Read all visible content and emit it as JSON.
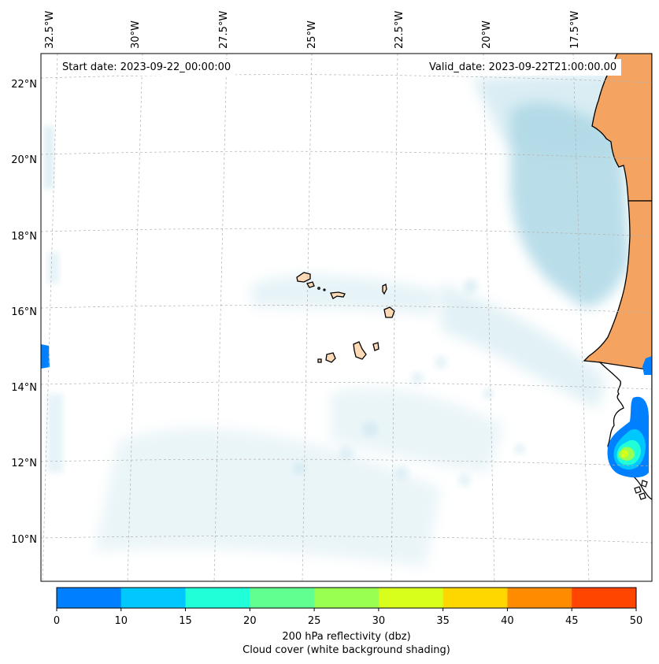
{
  "map": {
    "start_date": "Start date: 2023-09-22_00:00:00",
    "valid_date": "Valid_date: 2023-09-22T21:00:00.00",
    "longitude_labels": [
      "32.5°W",
      "30°W",
      "27.5°W",
      "25°W",
      "22.5°W",
      "20°W",
      "17.5°W"
    ],
    "latitude_labels": [
      "22°N",
      "20°N",
      "18°N",
      "16°N",
      "14°N",
      "12°N",
      "10°N"
    ]
  },
  "colorbar": {
    "ticks": [
      "0",
      "10",
      "15",
      "20",
      "25",
      "30",
      "35",
      "40",
      "45",
      "50"
    ],
    "colors": [
      "#0080ff",
      "#00c8ff",
      "#20ffd8",
      "#60ff90",
      "#99ff50",
      "#d8ff1c",
      "#ffd700",
      "#ff8c00",
      "#ff4500"
    ],
    "label": "200 hPa reflectivity (dbz)",
    "sublabel": "Cloud cover (white background shading)"
  },
  "colors": {
    "land": "#f4a460",
    "islands": "#fdd9b5",
    "cloud": "#add8e6"
  }
}
